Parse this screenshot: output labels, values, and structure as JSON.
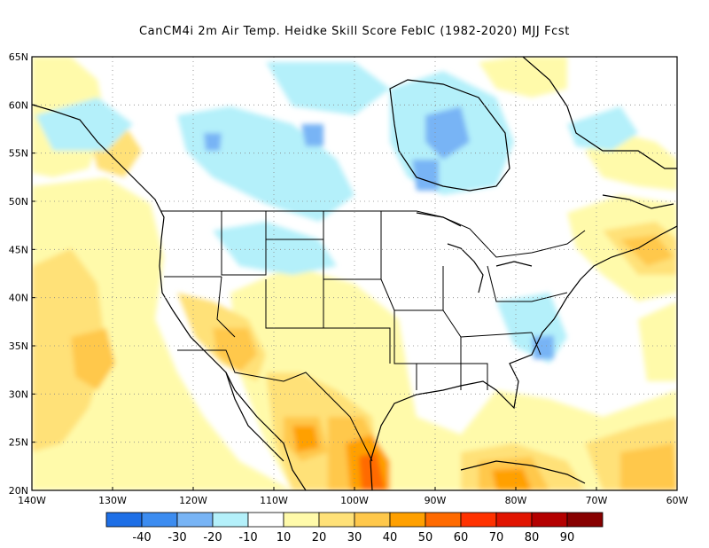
{
  "title": "CanCM4i  2m Air Temp. Heidke Skill Score FebIC (1982-2020) MJJ Fcst",
  "map": {
    "lon_range": [
      -140,
      -60
    ],
    "lat_range": [
      20,
      65
    ],
    "lat_ticks": [
      "20N",
      "25N",
      "30N",
      "35N",
      "40N",
      "45N",
      "50N",
      "55N",
      "60N",
      "65N"
    ],
    "lon_ticks": [
      "140W",
      "130W",
      "120W",
      "110W",
      "100W",
      "90W",
      "80W",
      "70W",
      "60W"
    ],
    "grid": "dotted"
  },
  "colorbar": {
    "labels": [
      "-40",
      "-30",
      "-20",
      "-10",
      "10",
      "20",
      "30",
      "40",
      "50",
      "60",
      "70",
      "80",
      "90"
    ],
    "colors": [
      "#1e6fe6",
      "#3c8cf0",
      "#78b4f5",
      "#b4f0fa",
      "#ffffff",
      "#fffaaa",
      "#ffe178",
      "#ffc84b",
      "#ffa000",
      "#ff6a00",
      "#ff3200",
      "#e11400",
      "#b40000",
      "#870000"
    ]
  }
}
